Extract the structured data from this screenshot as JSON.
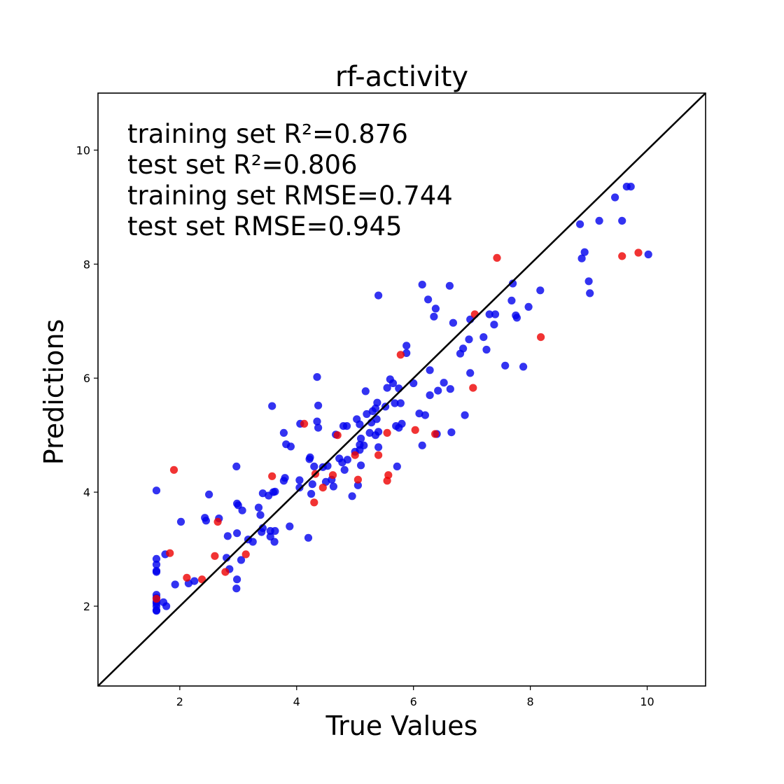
{
  "chart_data": {
    "type": "scatter",
    "title": "rf-activity",
    "xlabel": "True Values",
    "ylabel": "Predictions",
    "xlim": [
      0.6,
      11.0
    ],
    "ylim": [
      0.6,
      11.0
    ],
    "xticks": [
      2,
      4,
      6,
      8,
      10
    ],
    "yticks": [
      2,
      4,
      6,
      8,
      10
    ],
    "grid": false,
    "reference_line": {
      "from": [
        0.6,
        0.6
      ],
      "to": [
        11.0,
        11.0
      ],
      "color": "#000000"
    },
    "annotations": [
      "training set R²=0.876",
      "test set R²=0.806",
      "training set RMSE=0.744",
      "test set RMSE=0.945"
    ],
    "series": [
      {
        "color": "#0000ee",
        "points": [
          [
            1.6,
            4.03
          ],
          [
            1.6,
            2.83
          ],
          [
            1.6,
            2.73
          ],
          [
            1.6,
            2.62
          ],
          [
            1.6,
            2.6
          ],
          [
            1.6,
            2.2
          ],
          [
            1.6,
            2.15
          ],
          [
            1.6,
            2.08
          ],
          [
            1.6,
            2.05
          ],
          [
            1.6,
            2.0
          ],
          [
            1.6,
            1.93
          ],
          [
            1.6,
            1.92
          ],
          [
            1.72,
            2.07
          ],
          [
            1.75,
            2.91
          ],
          [
            1.77,
            2.0
          ],
          [
            1.92,
            2.38
          ],
          [
            2.02,
            3.48
          ],
          [
            2.15,
            2.4
          ],
          [
            2.25,
            2.44
          ],
          [
            2.43,
            3.55
          ],
          [
            2.45,
            3.5
          ],
          [
            2.5,
            3.96
          ],
          [
            2.67,
            3.54
          ],
          [
            2.8,
            2.85
          ],
          [
            2.82,
            3.23
          ],
          [
            2.85,
            2.65
          ],
          [
            2.97,
            4.45
          ],
          [
            2.98,
            3.8
          ],
          [
            2.98,
            2.47
          ],
          [
            2.97,
            2.31
          ],
          [
            3.0,
            3.77
          ],
          [
            2.98,
            3.28
          ],
          [
            3.05,
            2.81
          ],
          [
            3.07,
            3.68
          ],
          [
            3.17,
            3.17
          ],
          [
            3.25,
            3.13
          ],
          [
            3.35,
            3.73
          ],
          [
            3.38,
            3.6
          ],
          [
            3.4,
            3.3
          ],
          [
            3.42,
            3.98
          ],
          [
            3.42,
            3.37
          ],
          [
            3.52,
            3.94
          ],
          [
            3.55,
            3.32
          ],
          [
            3.55,
            3.22
          ],
          [
            3.58,
            5.51
          ],
          [
            3.6,
            4.0
          ],
          [
            3.62,
            3.13
          ],
          [
            3.63,
            4.01
          ],
          [
            3.63,
            3.32
          ],
          [
            3.78,
            4.2
          ],
          [
            3.78,
            5.04
          ],
          [
            3.8,
            4.25
          ],
          [
            3.82,
            4.84
          ],
          [
            3.88,
            3.4
          ],
          [
            3.9,
            4.8
          ],
          [
            4.05,
            4.21
          ],
          [
            4.05,
            4.08
          ],
          [
            4.06,
            5.2
          ],
          [
            4.2,
            3.2
          ],
          [
            4.22,
            4.58
          ],
          [
            4.23,
            4.61
          ],
          [
            4.25,
            3.97
          ],
          [
            4.27,
            4.14
          ],
          [
            4.3,
            4.45
          ],
          [
            4.35,
            6.02
          ],
          [
            4.35,
            5.24
          ],
          [
            4.37,
            5.52
          ],
          [
            4.37,
            5.13
          ],
          [
            4.45,
            4.44
          ],
          [
            4.5,
            4.18
          ],
          [
            4.53,
            4.46
          ],
          [
            4.6,
            4.22
          ],
          [
            4.63,
            4.1
          ],
          [
            4.67,
            5.01
          ],
          [
            4.73,
            4.59
          ],
          [
            4.78,
            4.52
          ],
          [
            4.8,
            5.16
          ],
          [
            4.82,
            4.39
          ],
          [
            4.86,
            5.16
          ],
          [
            4.87,
            4.57
          ],
          [
            4.95,
            3.93
          ],
          [
            5.0,
            4.71
          ],
          [
            5.03,
            5.28
          ],
          [
            5.05,
            4.12
          ],
          [
            5.08,
            4.83
          ],
          [
            5.08,
            4.74
          ],
          [
            5.08,
            5.19
          ],
          [
            5.1,
            4.94
          ],
          [
            5.1,
            4.47
          ],
          [
            5.15,
            4.82
          ],
          [
            5.18,
            5.77
          ],
          [
            5.2,
            5.37
          ],
          [
            5.25,
            5.04
          ],
          [
            5.28,
            5.22
          ],
          [
            5.3,
            5.42
          ],
          [
            5.35,
            5.47
          ],
          [
            5.35,
            5.0
          ],
          [
            5.37,
            5.28
          ],
          [
            5.38,
            5.57
          ],
          [
            5.4,
            7.45
          ],
          [
            5.4,
            4.79
          ],
          [
            5.4,
            5.06
          ],
          [
            5.52,
            5.5
          ],
          [
            5.55,
            5.83
          ],
          [
            5.6,
            5.98
          ],
          [
            5.65,
            5.91
          ],
          [
            5.68,
            5.56
          ],
          [
            5.7,
            5.16
          ],
          [
            5.72,
            4.45
          ],
          [
            5.75,
            5.13
          ],
          [
            5.75,
            5.82
          ],
          [
            5.78,
            5.56
          ],
          [
            5.8,
            5.2
          ],
          [
            5.88,
            6.57
          ],
          [
            5.88,
            6.44
          ],
          [
            6.0,
            5.91
          ],
          [
            6.1,
            5.38
          ],
          [
            6.15,
            7.64
          ],
          [
            6.15,
            4.82
          ],
          [
            6.2,
            5.35
          ],
          [
            6.25,
            7.38
          ],
          [
            6.28,
            5.7
          ],
          [
            6.28,
            6.14
          ],
          [
            6.35,
            7.08
          ],
          [
            6.38,
            7.22
          ],
          [
            6.4,
            5.02
          ],
          [
            6.42,
            5.78
          ],
          [
            6.52,
            5.92
          ],
          [
            6.62,
            7.62
          ],
          [
            6.63,
            5.81
          ],
          [
            6.65,
            5.05
          ],
          [
            6.68,
            6.97
          ],
          [
            6.8,
            6.43
          ],
          [
            6.85,
            6.52
          ],
          [
            6.88,
            5.35
          ],
          [
            6.95,
            6.68
          ],
          [
            6.97,
            6.09
          ],
          [
            6.97,
            7.03
          ],
          [
            7.2,
            6.72
          ],
          [
            7.25,
            6.5
          ],
          [
            7.3,
            7.12
          ],
          [
            7.38,
            6.94
          ],
          [
            7.4,
            7.12
          ],
          [
            7.57,
            6.22
          ],
          [
            7.68,
            7.36
          ],
          [
            7.7,
            7.66
          ],
          [
            7.75,
            7.1
          ],
          [
            7.77,
            7.06
          ],
          [
            7.88,
            6.2
          ],
          [
            7.97,
            7.25
          ],
          [
            8.17,
            7.54
          ],
          [
            8.85,
            8.7
          ],
          [
            8.88,
            8.1
          ],
          [
            8.93,
            8.21
          ],
          [
            9.0,
            7.7
          ],
          [
            9.02,
            7.49
          ],
          [
            9.18,
            8.76
          ],
          [
            9.45,
            9.17
          ],
          [
            9.57,
            8.76
          ],
          [
            9.65,
            9.36
          ],
          [
            9.72,
            9.36
          ],
          [
            10.02,
            8.17
          ]
        ]
      },
      {
        "color": "#ee0000",
        "points": [
          [
            1.6,
            2.13
          ],
          [
            1.83,
            2.93
          ],
          [
            1.9,
            4.39
          ],
          [
            2.12,
            2.5
          ],
          [
            2.38,
            2.47
          ],
          [
            2.6,
            2.88
          ],
          [
            2.65,
            3.48
          ],
          [
            2.78,
            2.6
          ],
          [
            3.13,
            2.91
          ],
          [
            3.58,
            4.28
          ],
          [
            4.13,
            5.2
          ],
          [
            4.3,
            3.82
          ],
          [
            4.32,
            4.32
          ],
          [
            4.45,
            4.08
          ],
          [
            4.62,
            4.3
          ],
          [
            4.7,
            5.0
          ],
          [
            5.0,
            4.65
          ],
          [
            5.05,
            4.22
          ],
          [
            5.4,
            4.65
          ],
          [
            5.55,
            5.04
          ],
          [
            5.55,
            4.2
          ],
          [
            5.57,
            4.3
          ],
          [
            5.78,
            6.41
          ],
          [
            6.03,
            5.09
          ],
          [
            6.37,
            5.02
          ],
          [
            7.02,
            5.83
          ],
          [
            7.05,
            7.12
          ],
          [
            7.43,
            8.11
          ],
          [
            8.18,
            6.72
          ],
          [
            9.57,
            8.14
          ],
          [
            9.85,
            8.2
          ]
        ]
      }
    ]
  }
}
